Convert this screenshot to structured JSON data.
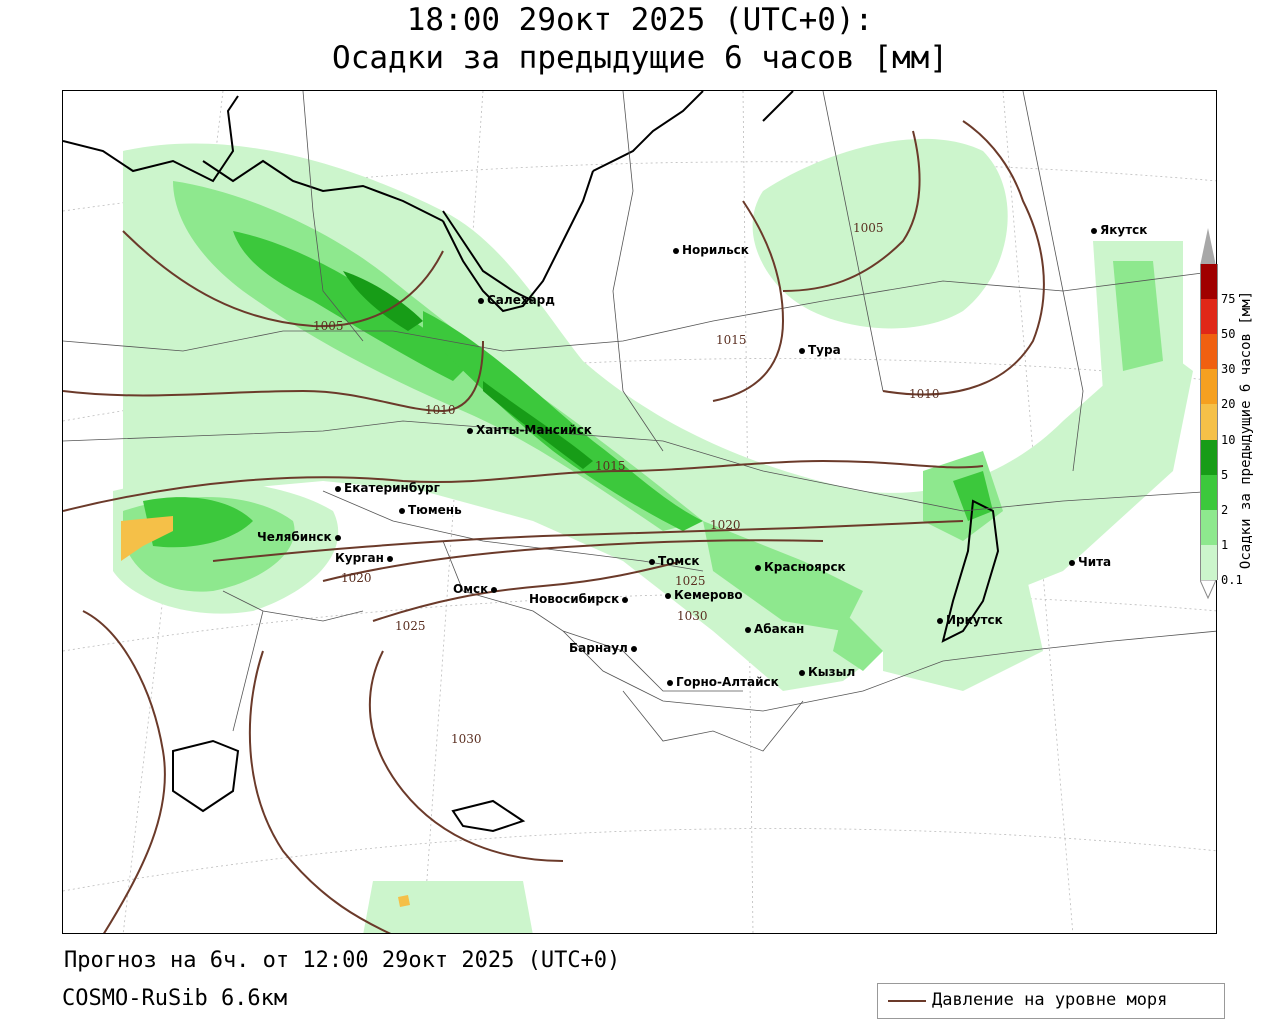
{
  "header": {
    "title_line1": "18:00 29окт 2025 (UTC+0):",
    "title_line2": "Осадки за предыдущие 6 часов [мм]"
  },
  "footer": {
    "forecast": "Прогноз на 6ч. от 12:00 29окт 2025 (UTC+0)",
    "model": "COSMO-RuSib 6.6км"
  },
  "legend": {
    "label": "Давление на уровне моря",
    "color": "#6b3a2a"
  },
  "colorbar": {
    "label": "Осадки за предыдущие 6 часов [мм]",
    "ticks": [
      "0.1",
      "1",
      "2",
      "5",
      "10",
      "20",
      "30",
      "50",
      "75"
    ],
    "colors": [
      "#ccf5cc",
      "#8ee88e",
      "#3cc83c",
      "#179c17",
      "#f5c048",
      "#f5a020",
      "#f06010",
      "#e02818",
      "#a00000"
    ],
    "over_color": "#a8a8a8"
  },
  "cities": [
    {
      "name": "Норильск"
    },
    {
      "name": "Якутск"
    },
    {
      "name": "Салехард"
    },
    {
      "name": "Тура"
    },
    {
      "name": "Ханты-Мансийск"
    },
    {
      "name": "Екатеринбург"
    },
    {
      "name": "Тюмень"
    },
    {
      "name": "Челябинск"
    },
    {
      "name": "Курган"
    },
    {
      "name": "Томск"
    },
    {
      "name": "Красноярск"
    },
    {
      "name": "Омск"
    },
    {
      "name": "Новосибирск"
    },
    {
      "name": "Кемерово"
    },
    {
      "name": "Абакан"
    },
    {
      "name": "Иркутск"
    },
    {
      "name": "Чита"
    },
    {
      "name": "Барнаул"
    },
    {
      "name": "Горно-Алтайск"
    },
    {
      "name": "Кызыл"
    }
  ],
  "isobar_labels": [
    "1005",
    "1005",
    "1015",
    "1010",
    "1010",
    "1015",
    "1020",
    "1020",
    "1025",
    "1030",
    "1025",
    "1030"
  ]
}
